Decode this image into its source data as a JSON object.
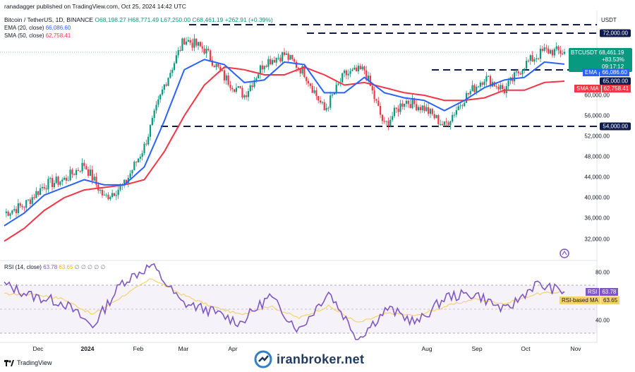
{
  "header": {
    "publisher": "ranadagger published on TradingView.com, Oct 25, 2024 14:42 UTC",
    "symbol_line": "Bitcoin / TetherUS, 1D, BINANCE",
    "open": "O68,198.27",
    "high": "H68,771.49",
    "low": "L67,250.00",
    "close": "C68,461.19",
    "change": "+262.91 (+0.39%)",
    "ema_label": "EMA (20, close)",
    "ema_value": "66,086.60",
    "sma_label": "SMA (50, close)",
    "sma_value": "62,758.41"
  },
  "rsi_header": {
    "label": "RSI (14, close)",
    "value1": "63.78",
    "value2": "63.65",
    "zeros": "∅ ∅ ∅ ∅ ∅"
  },
  "currency": "USDT",
  "pills": {
    "p72": "72,000.00",
    "symbol": "BTCUSDT",
    "price": "68,461.19",
    "chg": "+83.53%",
    "countdown": "09:17:12",
    "ema_tag": "EMA",
    "ema_val": "66,086.60",
    "p65": "65,000.00",
    "sma_tag": "SMA:MA",
    "sma_val": "62,758.41",
    "p54": "54,000.00",
    "rsi_tag": "RSI",
    "rsi_val": "63.78",
    "rsima_tag": "RSI-based MA",
    "rsima_val": "63.65"
  },
  "price_axis": [
    "60,000.00",
    "56,000.00",
    "52,000.00",
    "48,000.00",
    "44,000.00",
    "40,000.00",
    "36,000.00",
    "32,000.00"
  ],
  "rsi_axis": [
    "80.00",
    "40.00"
  ],
  "dates": [
    "Dec",
    "2024",
    "Feb",
    "Mar",
    "Apr",
    "Aug",
    "Sep",
    "Oct",
    "Nov"
  ],
  "footer": {
    "tradingview": "TradingView",
    "brand": "iranbroker.net"
  },
  "colors": {
    "ema": "#2962ff",
    "sma": "#f23645",
    "rsi": "#7e57c2",
    "rsi_ma": "#f5d36a",
    "up": "#089981",
    "down": "#f23645"
  },
  "chart_data": [
    {
      "type": "line",
      "title": "Bitcoin / TetherUS, 1D, BINANCE",
      "ylabel": "USDT",
      "ylim": [
        30000,
        76000
      ],
      "x": [
        "Nov 22",
        "Dec 1",
        "Dec 15",
        "Jan 1",
        "Jan 12",
        "Jan 23",
        "Feb 1",
        "Feb 15",
        "Mar 1",
        "Mar 14",
        "Apr 1",
        "Apr 15",
        "May 1",
        "May 15",
        "Jun 1",
        "Jun 15",
        "Jul 5",
        "Jul 15",
        "Aug 1",
        "Aug 5",
        "Aug 15",
        "Sep 1",
        "Sep 6",
        "Sep 15",
        "Oct 1",
        "Oct 10",
        "Oct 15",
        "Oct 21",
        "Oct 25"
      ],
      "series": [
        {
          "name": "BTCUSDT close",
          "values": [
            37000,
            38500,
            42500,
            43500,
            46500,
            40000,
            42500,
            50000,
            62000,
            71000,
            69000,
            63500,
            60000,
            66500,
            68000,
            64500,
            57000,
            64000,
            65000,
            54000,
            59000,
            57500,
            54000,
            59500,
            63500,
            61000,
            66000,
            68700,
            68461
          ]
        },
        {
          "name": "EMA (20, close)",
          "values": [
            34500,
            37000,
            40500,
            42000,
            43500,
            42500,
            42500,
            46000,
            55000,
            65000,
            67000,
            66000,
            62500,
            63000,
            66500,
            66000,
            60500,
            60500,
            63500,
            60500,
            59500,
            59000,
            57000,
            59000,
            61500,
            63000,
            63500,
            66500,
            66087
          ]
        },
        {
          "name": "SMA (50, close)",
          "values": [
            31500,
            34000,
            37500,
            40000,
            41500,
            42000,
            42500,
            43500,
            49000,
            56000,
            62000,
            65500,
            65000,
            64000,
            64000,
            65500,
            64000,
            62000,
            62500,
            61500,
            60500,
            60000,
            59000,
            59000,
            59500,
            61000,
            61000,
            62500,
            62758
          ]
        }
      ],
      "horizontal_lines": [
        72000,
        65000,
        54000
      ]
    },
    {
      "type": "line",
      "title": "RSI (14, close)",
      "ylim": [
        20,
        90
      ],
      "x": [
        "Nov 22",
        "Dec 15",
        "Jan 1",
        "Jan 23",
        "Feb 15",
        "Mar 5",
        "Mar 20",
        "Apr 15",
        "May 1",
        "Jun 1",
        "Jul 5",
        "Jul 20",
        "Aug 5",
        "Aug 20",
        "Sep 6",
        "Sep 20",
        "Oct 1",
        "Oct 10",
        "Oct 21",
        "Oct 25"
      ],
      "series": [
        {
          "name": "RSI",
          "values": [
            70,
            60,
            55,
            35,
            72,
            86,
            55,
            48,
            38,
            60,
            32,
            64,
            25,
            50,
            38,
            60,
            62,
            48,
            70,
            64
          ]
        },
        {
          "name": "RSI-based MA",
          "values": [
            62,
            62,
            58,
            45,
            60,
            75,
            62,
            52,
            45,
            52,
            42,
            52,
            38,
            46,
            44,
            52,
            58,
            54,
            62,
            64
          ]
        }
      ],
      "bands": [
        70,
        30
      ]
    }
  ]
}
